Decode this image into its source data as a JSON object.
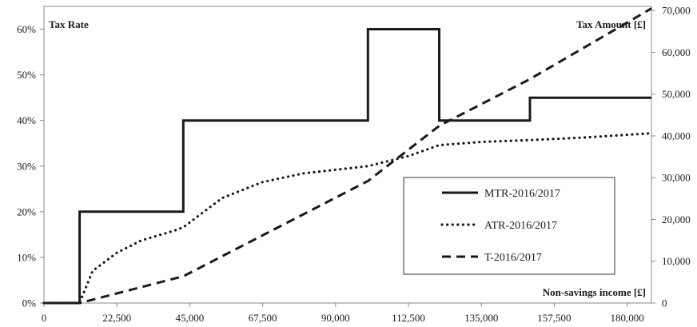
{
  "chart_data": {
    "type": "line",
    "title": "",
    "ylabel_left": "Tax Rate",
    "ylabel_right": "Tax Amount [£]",
    "xlabel": "Non-savings income [£]",
    "xlim": [
      0,
      187500
    ],
    "ylim_left": [
      0,
      0.65
    ],
    "ylim_right": [
      0,
      71000
    ],
    "x_ticks": [
      "0",
      "22,500",
      "45,000",
      "67,500",
      "90,000",
      "112,500",
      "135,000",
      "157,500",
      "180,000"
    ],
    "x_tick_values": [
      0,
      22500,
      45000,
      67500,
      90000,
      112500,
      135000,
      157500,
      180000
    ],
    "y_left_ticks": [
      "0%",
      "10%",
      "20%",
      "30%",
      "40%",
      "50%",
      "60%"
    ],
    "y_left_tick_values": [
      0,
      0.1,
      0.2,
      0.3,
      0.4,
      0.5,
      0.6
    ],
    "y_right_ticks": [
      "0",
      "10,000",
      "20,000",
      "30,000",
      "40,000",
      "50,000",
      "60,000",
      "70,000"
    ],
    "y_right_tick_values": [
      0,
      10000,
      20000,
      30000,
      40000,
      50000,
      60000,
      70000
    ],
    "grid": false,
    "legend_position": "center-right",
    "series": [
      {
        "name": "MTR-2016/2017",
        "axis": "left",
        "style": "solid",
        "x": [
          0,
          11000,
          11000,
          43000,
          43000,
          100000,
          100000,
          122000,
          122000,
          150000,
          150000,
          187500
        ],
        "y": [
          0,
          0,
          0.2,
          0.2,
          0.4,
          0.4,
          0.6,
          0.6,
          0.4,
          0.4,
          0.45,
          0.45
        ]
      },
      {
        "name": "ATR-2016/2017",
        "axis": "left",
        "style": "dotted",
        "x": [
          0,
          11000,
          15000,
          22500,
          30000,
          40000,
          43000,
          55000,
          67500,
          80000,
          100000,
          112500,
          122000,
          135000,
          150000,
          165000,
          187500
        ],
        "y": [
          0,
          0,
          0.07,
          0.11,
          0.137,
          0.158,
          0.166,
          0.23,
          0.265,
          0.284,
          0.3,
          0.322,
          0.346,
          0.353,
          0.357,
          0.362,
          0.372
        ]
      },
      {
        "name": "T-2016/2017",
        "axis": "right",
        "style": "dashed",
        "x": [
          0,
          11000,
          22500,
          43000,
          67500,
          100000,
          122000,
          150000,
          187500
        ],
        "y": [
          0,
          0,
          2300,
          6400,
          16200,
          29200,
          42400,
          53600,
          70500
        ]
      }
    ]
  }
}
